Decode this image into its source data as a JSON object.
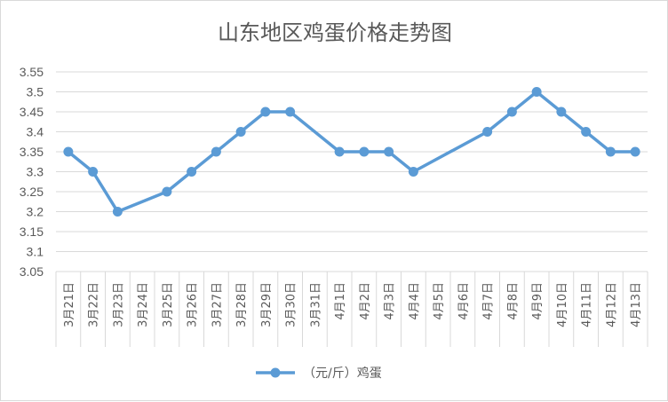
{
  "chart_data": {
    "type": "line",
    "title": "山东地区鸡蛋价格走势图",
    "xlabel": "",
    "ylabel": "",
    "categories": [
      "3月21日",
      "3月22日",
      "3月23日",
      "3月24日",
      "3月25日",
      "3月26日",
      "3月27日",
      "3月28日",
      "3月29日",
      "3月30日",
      "3月31日",
      "4月1日",
      "4月2日",
      "4月3日",
      "4月4日",
      "4月5日",
      "4月6日",
      "4月7日",
      "4月8日",
      "4月9日",
      "4月10日",
      "4月11日",
      "4月12日",
      "4月13日"
    ],
    "series": [
      {
        "name": "（元/斤）鸡蛋",
        "color": "#5b9bd5",
        "values": [
          3.35,
          3.3,
          3.2,
          null,
          3.25,
          3.3,
          3.35,
          3.4,
          3.45,
          3.45,
          null,
          3.35,
          3.35,
          3.35,
          3.3,
          null,
          null,
          3.4,
          3.45,
          3.5,
          3.45,
          3.4,
          3.35,
          3.35
        ]
      }
    ],
    "ylim": [
      3.05,
      3.55
    ],
    "yticks": [
      "3.55",
      "3.5",
      "3.45",
      "3.4",
      "3.35",
      "3.3",
      "3.25",
      "3.2",
      "3.15",
      "3.1",
      "3.05"
    ],
    "grid": true,
    "legend": "bottom"
  }
}
